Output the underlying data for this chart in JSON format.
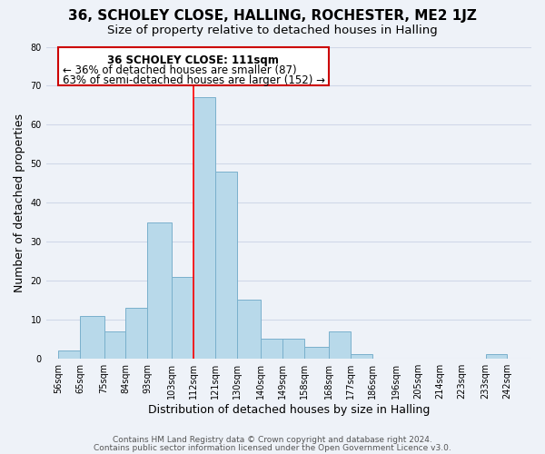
{
  "title": "36, SCHOLEY CLOSE, HALLING, ROCHESTER, ME2 1JZ",
  "subtitle": "Size of property relative to detached houses in Halling",
  "xlabel": "Distribution of detached houses by size in Halling",
  "ylabel": "Number of detached properties",
  "footer_line1": "Contains HM Land Registry data © Crown copyright and database right 2024.",
  "footer_line2": "Contains public sector information licensed under the Open Government Licence v3.0.",
  "annotation_line1": "36 SCHOLEY CLOSE: 111sqm",
  "annotation_line2": "← 36% of detached houses are smaller (87)",
  "annotation_line3": "63% of semi-detached houses are larger (152) →",
  "bar_left_edges": [
    56,
    65,
    75,
    84,
    93,
    103,
    112,
    121,
    130,
    140,
    149,
    158,
    168,
    177,
    186,
    196,
    205,
    214,
    223,
    233,
    242
  ],
  "bar_heights": [
    2,
    11,
    7,
    13,
    35,
    21,
    67,
    48,
    15,
    5,
    5,
    3,
    7,
    1,
    0,
    0,
    0,
    0,
    0,
    1,
    0
  ],
  "bar_widths": [
    9,
    10,
    9,
    9,
    10,
    9,
    9,
    9,
    10,
    9,
    9,
    10,
    9,
    9,
    10,
    9,
    9,
    9,
    10,
    9,
    1
  ],
  "tick_labels": [
    "56sqm",
    "65sqm",
    "75sqm",
    "84sqm",
    "93sqm",
    "103sqm",
    "112sqm",
    "121sqm",
    "130sqm",
    "140sqm",
    "149sqm",
    "158sqm",
    "168sqm",
    "177sqm",
    "186sqm",
    "196sqm",
    "205sqm",
    "214sqm",
    "223sqm",
    "233sqm",
    "242sqm"
  ],
  "bar_color": "#b8d9ea",
  "bar_edge_color": "#7ab0cc",
  "red_line_x": 112,
  "ylim": [
    0,
    80
  ],
  "xlim": [
    51,
    252
  ],
  "yticks": [
    0,
    10,
    20,
    30,
    40,
    50,
    60,
    70,
    80
  ],
  "grid_color": "#d0d8e8",
  "background_color": "#eef2f8",
  "annotation_box_color": "#ffffff",
  "annotation_box_edge_color": "#cc0000",
  "title_fontsize": 11,
  "subtitle_fontsize": 9.5,
  "axis_label_fontsize": 9,
  "tick_fontsize": 7,
  "annotation_fontsize": 8.5,
  "footer_fontsize": 6.5
}
